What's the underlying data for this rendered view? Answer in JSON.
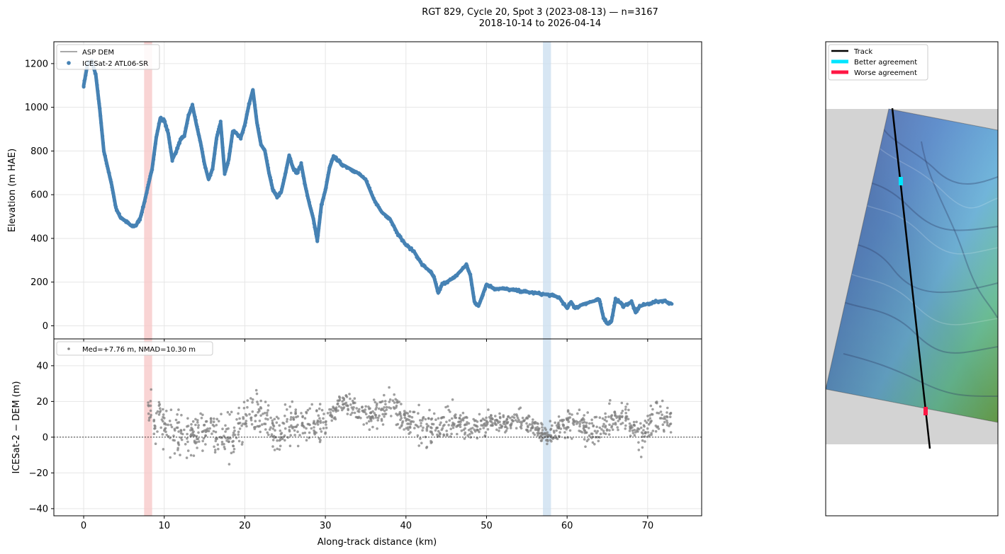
{
  "title_line1": "RGT 829, Cycle 20, Spot 3 (2023-08-13) — n=3167",
  "title_line2": "2018-10-14 to 2026-04-14",
  "colors": {
    "icesat": "#4682b4",
    "dem_line": "#8c8c8c",
    "residual": "#7f7f7f",
    "worse_span": "#f7c6c6",
    "better_span": "#c9ddef",
    "track": "#000000",
    "better": "#00e5ff",
    "worse": "#ff1744",
    "nodata": "#d3d3d3"
  },
  "chart_data": [
    {
      "type": "line",
      "ylabel": "Elevation (m HAE)",
      "xlim": [
        -3.7,
        76.7
      ],
      "ylim": [
        -60,
        1300
      ],
      "yticks": [
        0,
        200,
        400,
        600,
        800,
        1000,
        1200
      ],
      "grid": true,
      "legend_position": "top-left",
      "legend": [
        "ASP DEM",
        "ICESat-2 ATL06-SR"
      ],
      "highlight_spans": [
        {
          "x0": 7.5,
          "x1": 8.5,
          "meaning": "worse"
        },
        {
          "x0": 57.0,
          "x1": 58.0,
          "meaning": "better"
        }
      ],
      "series": [
        {
          "name": "ICESat-2 ATL06-SR",
          "x": [
            0,
            0.5,
            1.0,
            1.5,
            2.0,
            2.5,
            3.0,
            3.5,
            4.0,
            4.5,
            5.0,
            5.5,
            6.0,
            6.5,
            7.0,
            7.5,
            8.0,
            8.5,
            9.0,
            9.5,
            10.0,
            10.5,
            11.0,
            11.5,
            12.0,
            12.5,
            13.0,
            13.5,
            14.0,
            14.5,
            15.0,
            15.5,
            16.0,
            16.5,
            17.0,
            17.5,
            18.0,
            18.5,
            19.0,
            19.5,
            20.0,
            20.5,
            21.0,
            21.5,
            22.0,
            22.5,
            23.0,
            23.5,
            24.0,
            24.5,
            25.0,
            25.5,
            26.0,
            26.5,
            27.0,
            27.5,
            28.0,
            28.5,
            29.0,
            29.5,
            30.0,
            30.5,
            31.0,
            31.5,
            32.0,
            33.0,
            34.0,
            35.0,
            36.0,
            37.0,
            38.0,
            39.0,
            40.0,
            41.0,
            42.0,
            43.0,
            43.5,
            44.0,
            44.5,
            45.0,
            46.0,
            47.0,
            47.5,
            48.0,
            48.5,
            49.0,
            49.5,
            50.0,
            51.0,
            52.0,
            53.0,
            54.0,
            55.0,
            56.0,
            57.0,
            58.0,
            59.0,
            60.0,
            60.5,
            61.0,
            62.0,
            63.0,
            64.0,
            64.5,
            65.0,
            65.5,
            66.0,
            66.5,
            67.0,
            68.0,
            68.5,
            69.0,
            70.0,
            71.0,
            72.0,
            73.0
          ],
          "values": [
            1100,
            1200,
            1210,
            1150,
            990,
            800,
            720,
            640,
            540,
            500,
            485,
            470,
            455,
            460,
            490,
            560,
            640,
            720,
            860,
            950,
            940,
            880,
            760,
            800,
            850,
            870,
            960,
            1010,
            920,
            840,
            740,
            670,
            720,
            860,
            930,
            700,
            760,
            890,
            880,
            860,
            920,
            1010,
            1080,
            930,
            830,
            800,
            700,
            620,
            590,
            610,
            690,
            780,
            720,
            700,
            740,
            640,
            560,
            490,
            390,
            550,
            620,
            720,
            775,
            760,
            740,
            720,
            700,
            670,
            580,
            520,
            490,
            420,
            370,
            340,
            280,
            250,
            220,
            150,
            190,
            200,
            220,
            260,
            280,
            230,
            110,
            90,
            140,
            190,
            170,
            170,
            165,
            160,
            155,
            150,
            145,
            140,
            130,
            80,
            110,
            80,
            100,
            110,
            120,
            40,
            10,
            20,
            120,
            110,
            90,
            110,
            60,
            90,
            100,
            110,
            115,
            100
          ]
        },
        {
          "name": "ASP DEM",
          "x": [
            0,
            0.5,
            1.0,
            1.5,
            2.0,
            2.5,
            3.0,
            3.5,
            4.0,
            4.5,
            5.0,
            5.5,
            6.0,
            6.5,
            7.0,
            7.5,
            8.0,
            8.5,
            9.0,
            9.5,
            10.0,
            10.5,
            11.0,
            11.5,
            12.0,
            12.5,
            13.0,
            13.5,
            14.0,
            14.5,
            15.0,
            15.5,
            16.0,
            16.5,
            17.0,
            17.5,
            18.0,
            18.5,
            19.0,
            19.5,
            20.0,
            20.5,
            21.0,
            21.5,
            22.0,
            22.5,
            23.0,
            23.5,
            24.0,
            24.5,
            25.0,
            25.5,
            26.0,
            26.5,
            27.0,
            27.5,
            28.0,
            28.5,
            29.0,
            29.5,
            30.0,
            30.5,
            31.0,
            31.5,
            32.0,
            33.0,
            34.0,
            35.0,
            36.0,
            37.0,
            38.0,
            39.0,
            40.0,
            41.0,
            42.0,
            43.0,
            43.5,
            44.0,
            44.5,
            45.0,
            46.0,
            47.0,
            47.5,
            48.0,
            48.5,
            49.0,
            49.5,
            50.0,
            51.0,
            52.0,
            53.0,
            54.0,
            55.0,
            56.0,
            57.0,
            58.0,
            59.0,
            60.0,
            60.5,
            61.0,
            62.0,
            63.0,
            64.0,
            64.5,
            65.0,
            65.5,
            66.0,
            66.5,
            67.0,
            68.0,
            68.5,
            69.0,
            70.0,
            71.0,
            72.0,
            73.0
          ],
          "values": [
            1095,
            1195,
            1205,
            1145,
            985,
            795,
            715,
            635,
            535,
            495,
            480,
            465,
            450,
            455,
            485,
            555,
            635,
            715,
            855,
            945,
            935,
            875,
            755,
            795,
            845,
            865,
            955,
            1005,
            915,
            835,
            735,
            665,
            715,
            855,
            925,
            695,
            755,
            885,
            875,
            855,
            915,
            1005,
            1075,
            925,
            825,
            795,
            695,
            615,
            585,
            605,
            685,
            775,
            715,
            695,
            735,
            635,
            555,
            485,
            385,
            545,
            615,
            715,
            770,
            755,
            735,
            715,
            695,
            665,
            575,
            515,
            485,
            415,
            365,
            335,
            275,
            245,
            215,
            145,
            185,
            195,
            215,
            255,
            275,
            225,
            105,
            85,
            135,
            185,
            165,
            165,
            160,
            155,
            150,
            145,
            140,
            135,
            125,
            75,
            105,
            75,
            95,
            105,
            115,
            35,
            5,
            15,
            115,
            105,
            85,
            105,
            55,
            85,
            95,
            105,
            110,
            95
          ]
        }
      ]
    },
    {
      "type": "scatter",
      "xlabel": "Along-track distance (km)",
      "ylabel": "ICESat-2 − DEM (m)",
      "xlim": [
        -3.7,
        76.7
      ],
      "ylim": [
        -44,
        55
      ],
      "xticks": [
        0,
        10,
        20,
        30,
        40,
        50,
        60,
        70
      ],
      "yticks": [
        -40,
        -20,
        0,
        20,
        40
      ],
      "reference_line_y": 0,
      "grid": true,
      "legend_position": "top-left",
      "legend": [
        "Med=+7.76 m, NMAD=10.30 m"
      ],
      "trend": {
        "x": [
          8,
          10,
          12,
          14,
          16,
          18,
          20,
          22,
          24,
          26,
          28,
          30,
          32,
          34,
          36,
          38,
          40,
          42,
          44,
          46,
          48,
          50,
          52,
          54,
          56,
          57.5,
          59,
          61,
          63,
          65,
          67,
          69,
          71,
          73
        ],
        "values": [
          18,
          5,
          3,
          0,
          5,
          -2,
          8,
          12,
          3,
          10,
          5,
          8,
          20,
          15,
          12,
          20,
          10,
          5,
          3,
          10,
          5,
          8,
          8,
          10,
          5,
          0,
          5,
          10,
          3,
          8,
          10,
          0,
          12,
          10
        ],
        "spread": [
          14,
          14,
          14,
          15,
          14,
          16,
          14,
          14,
          13,
          12,
          12,
          10,
          7,
          7,
          8,
          9,
          10,
          11,
          11,
          10,
          8,
          7,
          6,
          6,
          7,
          6,
          8,
          9,
          10,
          12,
          11,
          11,
          10,
          8
        ]
      }
    }
  ],
  "map_panel": {
    "legend": [
      {
        "label": "Track",
        "color_key": "track"
      },
      {
        "label": "Better agreement",
        "color_key": "better"
      },
      {
        "label": "Worse agreement",
        "color_key": "worse"
      }
    ]
  }
}
